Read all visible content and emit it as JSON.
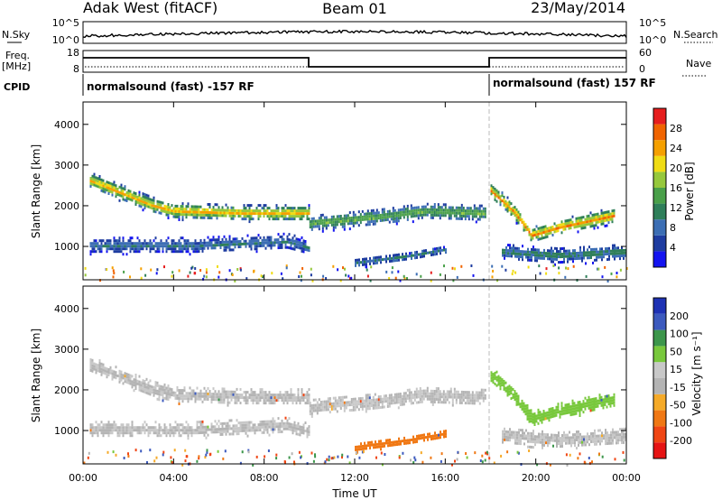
{
  "header": {
    "station": "Adak West (fitACF)",
    "beam": "Beam 01",
    "date": "23/May/2014"
  },
  "sky_panel": {
    "left_label": "N.Sky",
    "right_label": "N.Search",
    "ticks_left": [
      "10^5",
      "10^0"
    ],
    "ticks_right": [
      "10^5",
      "10^0"
    ]
  },
  "freq_panel": {
    "left_label_1": "Freq.",
    "left_label_2": "[MHz]",
    "right_label": "Nave",
    "ticks_left": [
      "18",
      "8"
    ],
    "ticks_right": [
      "60",
      "0"
    ],
    "cpid_label": "CPID",
    "cpid_segments": [
      "normalsound (fast) -157 RF",
      "normalsound (fast) 157 RF"
    ]
  },
  "x_axis": {
    "label": "Time UT",
    "ticks": [
      "00:00",
      "04:00",
      "08:00",
      "12:00",
      "16:00",
      "20:00",
      "00:00"
    ]
  },
  "colors": {
    "power": [
      "#1414f0",
      "#1e3ca0",
      "#3c6eb4",
      "#2f7f5a",
      "#4aa04a",
      "#96c83c",
      "#f0dc14",
      "#f5a000",
      "#f06400",
      "#e61e1e"
    ],
    "velocity": [
      "#e61414",
      "#f04614",
      "#f07814",
      "#f5aa28",
      "#b4b4b4",
      "#c8c8c8",
      "#78c83c",
      "#3c964b",
      "#3c5abe",
      "#1e32b4"
    ]
  },
  "chart_data": [
    {
      "type": "heatmap",
      "panel": "power",
      "ylabel": "Slant Range [km]",
      "ylim": [
        180,
        4550
      ],
      "y_ticks": [
        "1000",
        "2000",
        "3000",
        "4000"
      ],
      "xlim_hours": [
        0,
        24
      ],
      "colorbar_label": "Power [dB]",
      "colorbar_ticks": [
        "28",
        "24",
        "20",
        "16",
        "12",
        "8",
        "4"
      ],
      "echo_bands": [
        {
          "t": [
            0.3,
            3.0,
            4.0,
            7.0,
            10.0
          ],
          "r": [
            2650,
            2050,
            1900,
            1850,
            1850
          ],
          "width_km": 260,
          "peak_db": 24
        },
        {
          "t": [
            0.3,
            5.0,
            9.0,
            10.0
          ],
          "r": [
            1050,
            1050,
            1150,
            1000
          ],
          "width_km": 260,
          "peak_db": 10
        },
        {
          "t": [
            10.0,
            13.0,
            15.0,
            17.8
          ],
          "r": [
            1600,
            1750,
            1900,
            1850
          ],
          "width_km": 280,
          "peak_db": 16
        },
        {
          "t": [
            12.0,
            14.5,
            16.0
          ],
          "r": [
            620,
            800,
            950
          ],
          "width_km": 160,
          "peak_db": 10
        },
        {
          "t": [
            18.0,
            19.0,
            19.8,
            21.0,
            23.5
          ],
          "r": [
            2400,
            1900,
            1300,
            1500,
            1800
          ],
          "width_km": 260,
          "peak_db": 26
        },
        {
          "t": [
            18.5,
            21.0,
            24.0
          ],
          "r": [
            900,
            800,
            900
          ],
          "width_km": 280,
          "peak_db": 12
        }
      ]
    },
    {
      "type": "heatmap",
      "panel": "velocity",
      "ylabel": "Slant Range [km]",
      "ylim": [
        180,
        4550
      ],
      "y_ticks": [
        "1000",
        "2000",
        "3000",
        "4000"
      ],
      "xlim_hours": [
        0,
        24
      ],
      "colorbar_label": "Velocity [m s⁻¹]",
      "colorbar_ticks": [
        "200",
        "100",
        "50",
        "15",
        "-15",
        "-50",
        "-100",
        "-200"
      ],
      "echo_bands": [
        {
          "t": [
            0.3,
            3.0,
            4.0,
            7.0,
            10.0
          ],
          "r": [
            2650,
            2050,
            1900,
            1850,
            1850
          ],
          "width_km": 260,
          "vel": 0
        },
        {
          "t": [
            0.3,
            5.0,
            9.0,
            10.0
          ],
          "r": [
            1050,
            1050,
            1150,
            1000
          ],
          "width_km": 260,
          "vel": 0
        },
        {
          "t": [
            10.0,
            13.0,
            15.0,
            17.8
          ],
          "r": [
            1600,
            1750,
            1900,
            1850
          ],
          "width_km": 280,
          "vel": 0
        },
        {
          "t": [
            12.0,
            14.5,
            16.0
          ],
          "r": [
            620,
            800,
            950
          ],
          "width_km": 160,
          "vel": -70
        },
        {
          "t": [
            18.0,
            19.0,
            19.8,
            21.0,
            23.5
          ],
          "r": [
            2400,
            1900,
            1300,
            1500,
            1800
          ],
          "width_km": 260,
          "vel": 40
        },
        {
          "t": [
            18.5,
            21.0,
            24.0
          ],
          "r": [
            900,
            800,
            900
          ],
          "width_km": 280,
          "vel": 0
        }
      ]
    }
  ]
}
